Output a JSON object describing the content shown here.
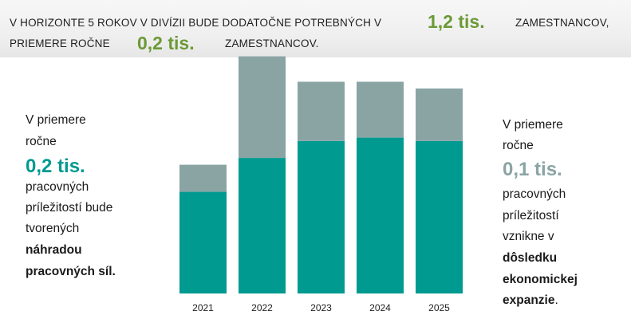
{
  "header": {
    "line1_text": "V HORIZONTE 5 ROKOV V DIVÍZII BUDE DODATOČNE POTREBNÝCH V",
    "line1_value": "1,2 tis.",
    "line1_tail": "ZAMESTNANCOV,",
    "line2_text": "PRIEMERE ROČNE",
    "line2_value": "0,2 tis.",
    "line2_tail": "ZAMESTNANCOV."
  },
  "left_panel": {
    "line1": "V priemere",
    "line2": "ročne",
    "value": "0,2 tis.",
    "line3": "pracovných",
    "line4": "príležitostí bude",
    "line5": "tvorených",
    "line6": "náhradou",
    "line7": "pracovných síl."
  },
  "right_panel": {
    "line1": "V priemere",
    "line2": "ročne",
    "value": "0,1 tis.",
    "line3": "pracovných",
    "line4": "príležitostí",
    "line5": "vznikne v",
    "line6": "dôsledku",
    "line7": "ekonomickej",
    "line8": "expanzie",
    "line8_suffix": "."
  },
  "colors": {
    "replacement": "#009a90",
    "expansion": "#8aa4a4",
    "accent_green": "#6b9a36",
    "accent_teal": "#009a90",
    "accent_gray": "#8aa4a4"
  },
  "chart_data": {
    "type": "bar",
    "stacked": true,
    "categories": [
      "2021",
      "2022",
      "2023",
      "2024",
      "2025"
    ],
    "series": [
      {
        "values": [
          0.6,
          0.8,
          0.9,
          0.92,
          0.9
        ]
      },
      {
        "values": [
          0.16,
          0.6,
          0.35,
          0.33,
          0.31
        ]
      }
    ],
    "ylim": [
      0,
      1.45
    ],
    "grid": false,
    "legend": "none"
  }
}
